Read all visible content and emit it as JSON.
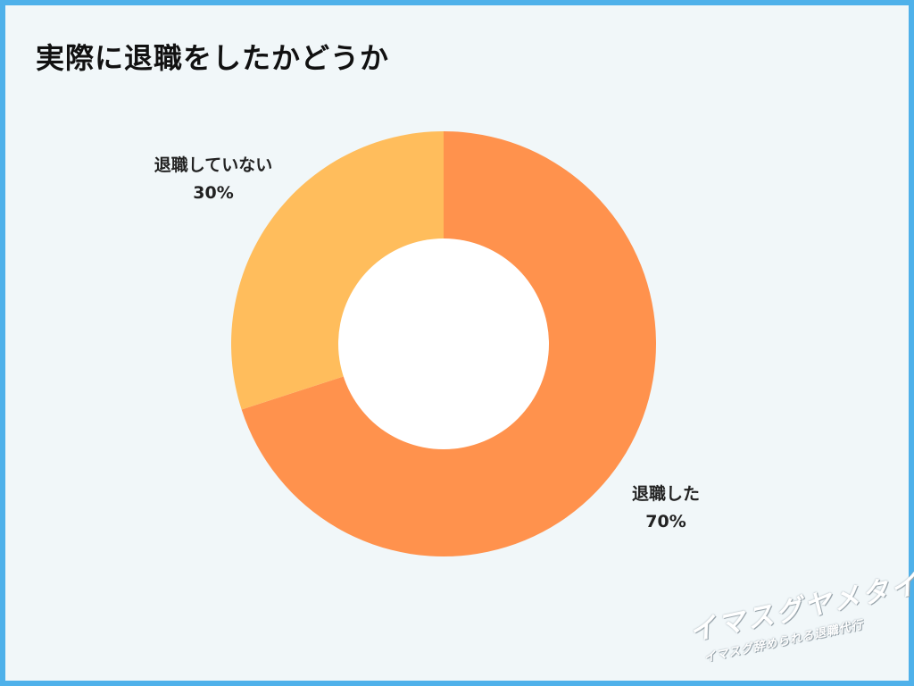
{
  "title": "実際に退職をしたかどうか",
  "chart_data": {
    "type": "pie",
    "variant": "donut",
    "title": "実際に退職をしたかどうか",
    "slices": [
      {
        "label": "退職した",
        "value": 70,
        "display": "70%",
        "color": "#ff924d"
      },
      {
        "label": "退職していない",
        "value": 30,
        "display": "30%",
        "color": "#ffbd5c"
      }
    ]
  },
  "watermark": {
    "main": "イマスグヤメタイ",
    "sub": "イマスグ辞められる退職代行"
  },
  "colors": {
    "border": "#4fb1ea",
    "background": "#f1f7f9",
    "hole": "#ffffff"
  }
}
